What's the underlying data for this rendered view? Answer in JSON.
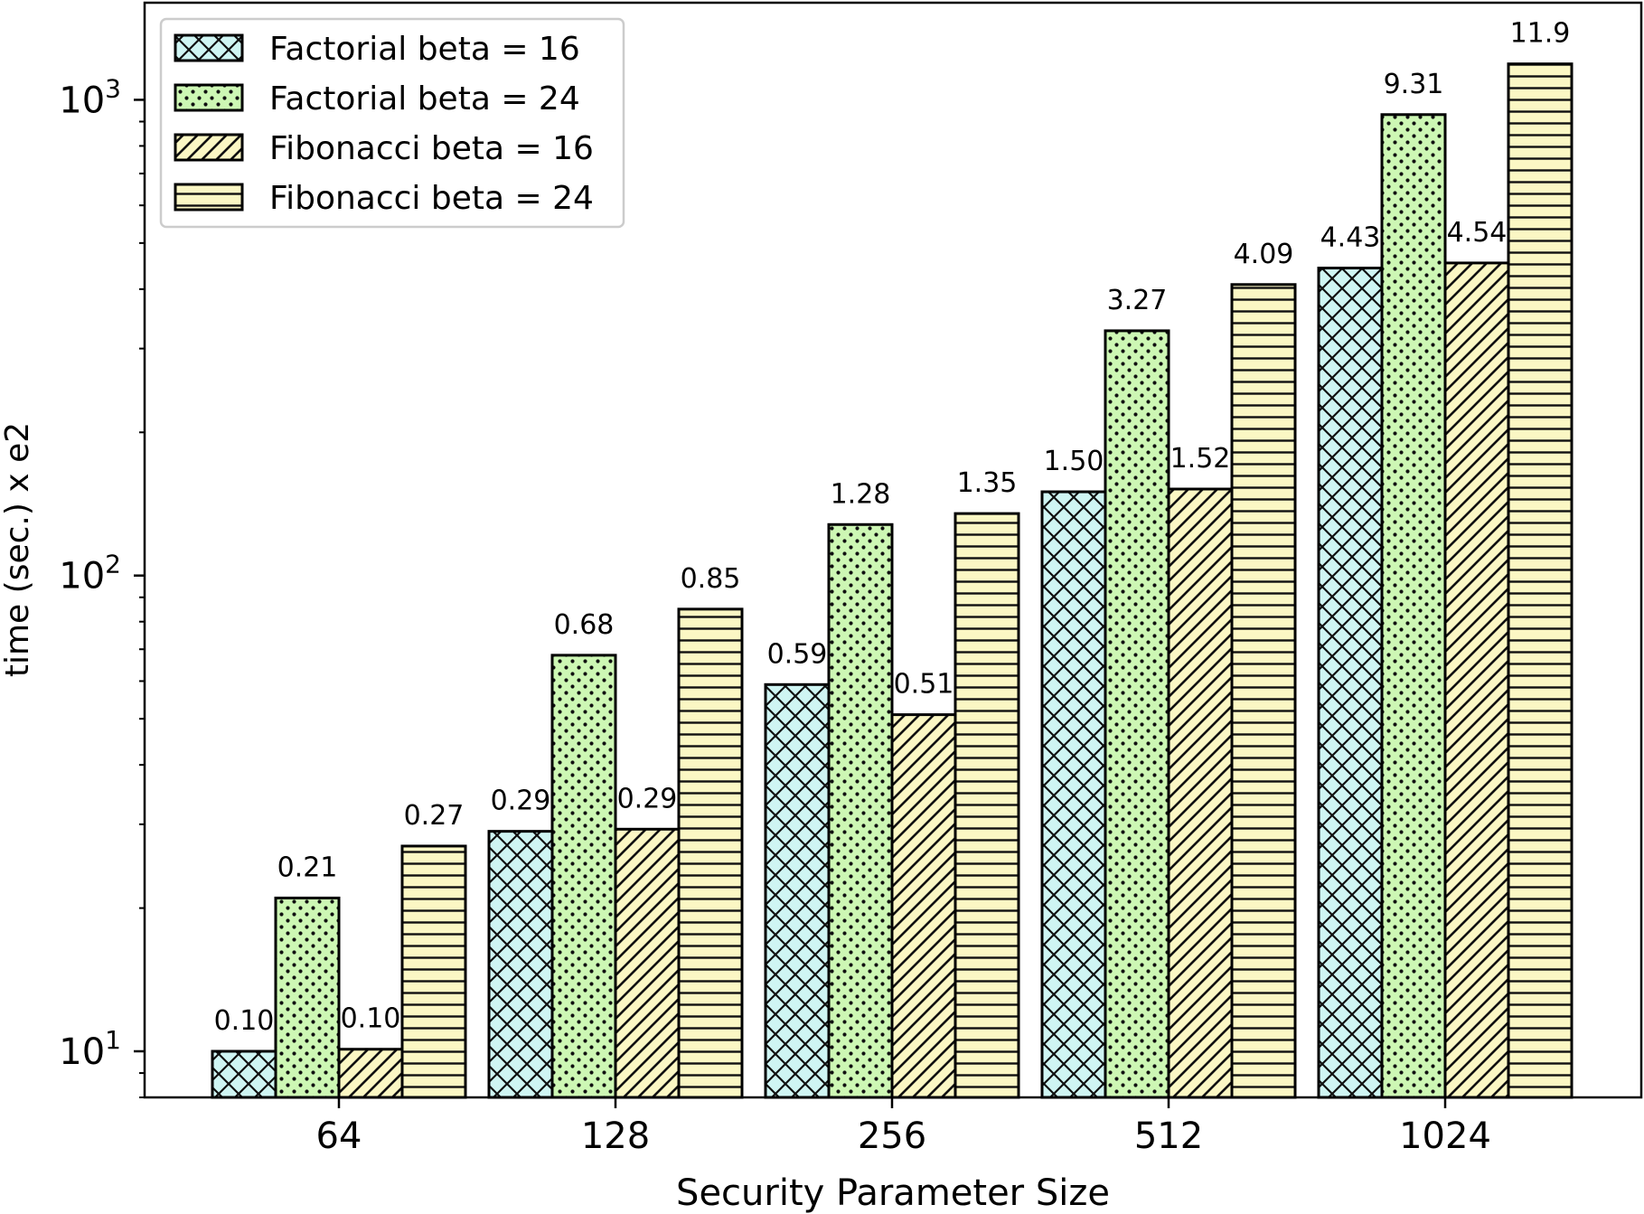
{
  "chart_data": {
    "type": "bar",
    "xlabel": "Security Parameter Size",
    "ylabel": "time (sec.) x e2",
    "yscale": "log",
    "ylim": [
      8,
      1600
    ],
    "yticks": [
      {
        "value": 10,
        "base": "10",
        "exp": "1"
      },
      {
        "value": 100,
        "base": "10",
        "exp": "2"
      },
      {
        "value": 1000,
        "base": "10",
        "exp": "3"
      }
    ],
    "categories": [
      "64",
      "128",
      "256",
      "512",
      "1024"
    ],
    "series": [
      {
        "name": "Factorial beta = 16",
        "values": [
          10,
          29,
          59,
          150,
          443
        ],
        "labels": [
          "0.10",
          "0.29",
          "0.59",
          "1.50",
          "4.43"
        ],
        "color": "#cff5f3",
        "pattern": "crosshatch"
      },
      {
        "name": "Factorial beta = 24",
        "values": [
          21,
          68,
          128,
          327,
          931
        ],
        "labels": [
          "0.21",
          "0.68",
          "1.28",
          "3.27",
          "9.31"
        ],
        "color": "#cdf7b4",
        "pattern": "dots"
      },
      {
        "name": "Fibonacci beta = 16",
        "values": [
          10.1,
          29.3,
          51,
          152,
          454
        ],
        "labels": [
          "0.10",
          "0.29",
          "0.51",
          "1.52",
          "4.54"
        ],
        "color": "#fbf7c4",
        "pattern": "diagonal"
      },
      {
        "name": "Fibonacci beta = 24",
        "values": [
          27,
          85,
          135,
          409,
          1190
        ],
        "labels": [
          "0.27",
          "0.85",
          "1.35",
          "4.09",
          "11.9"
        ],
        "color": "#fbf7c4",
        "pattern": "horizontal"
      }
    ],
    "legend_position": "top-left",
    "grid": false
  }
}
